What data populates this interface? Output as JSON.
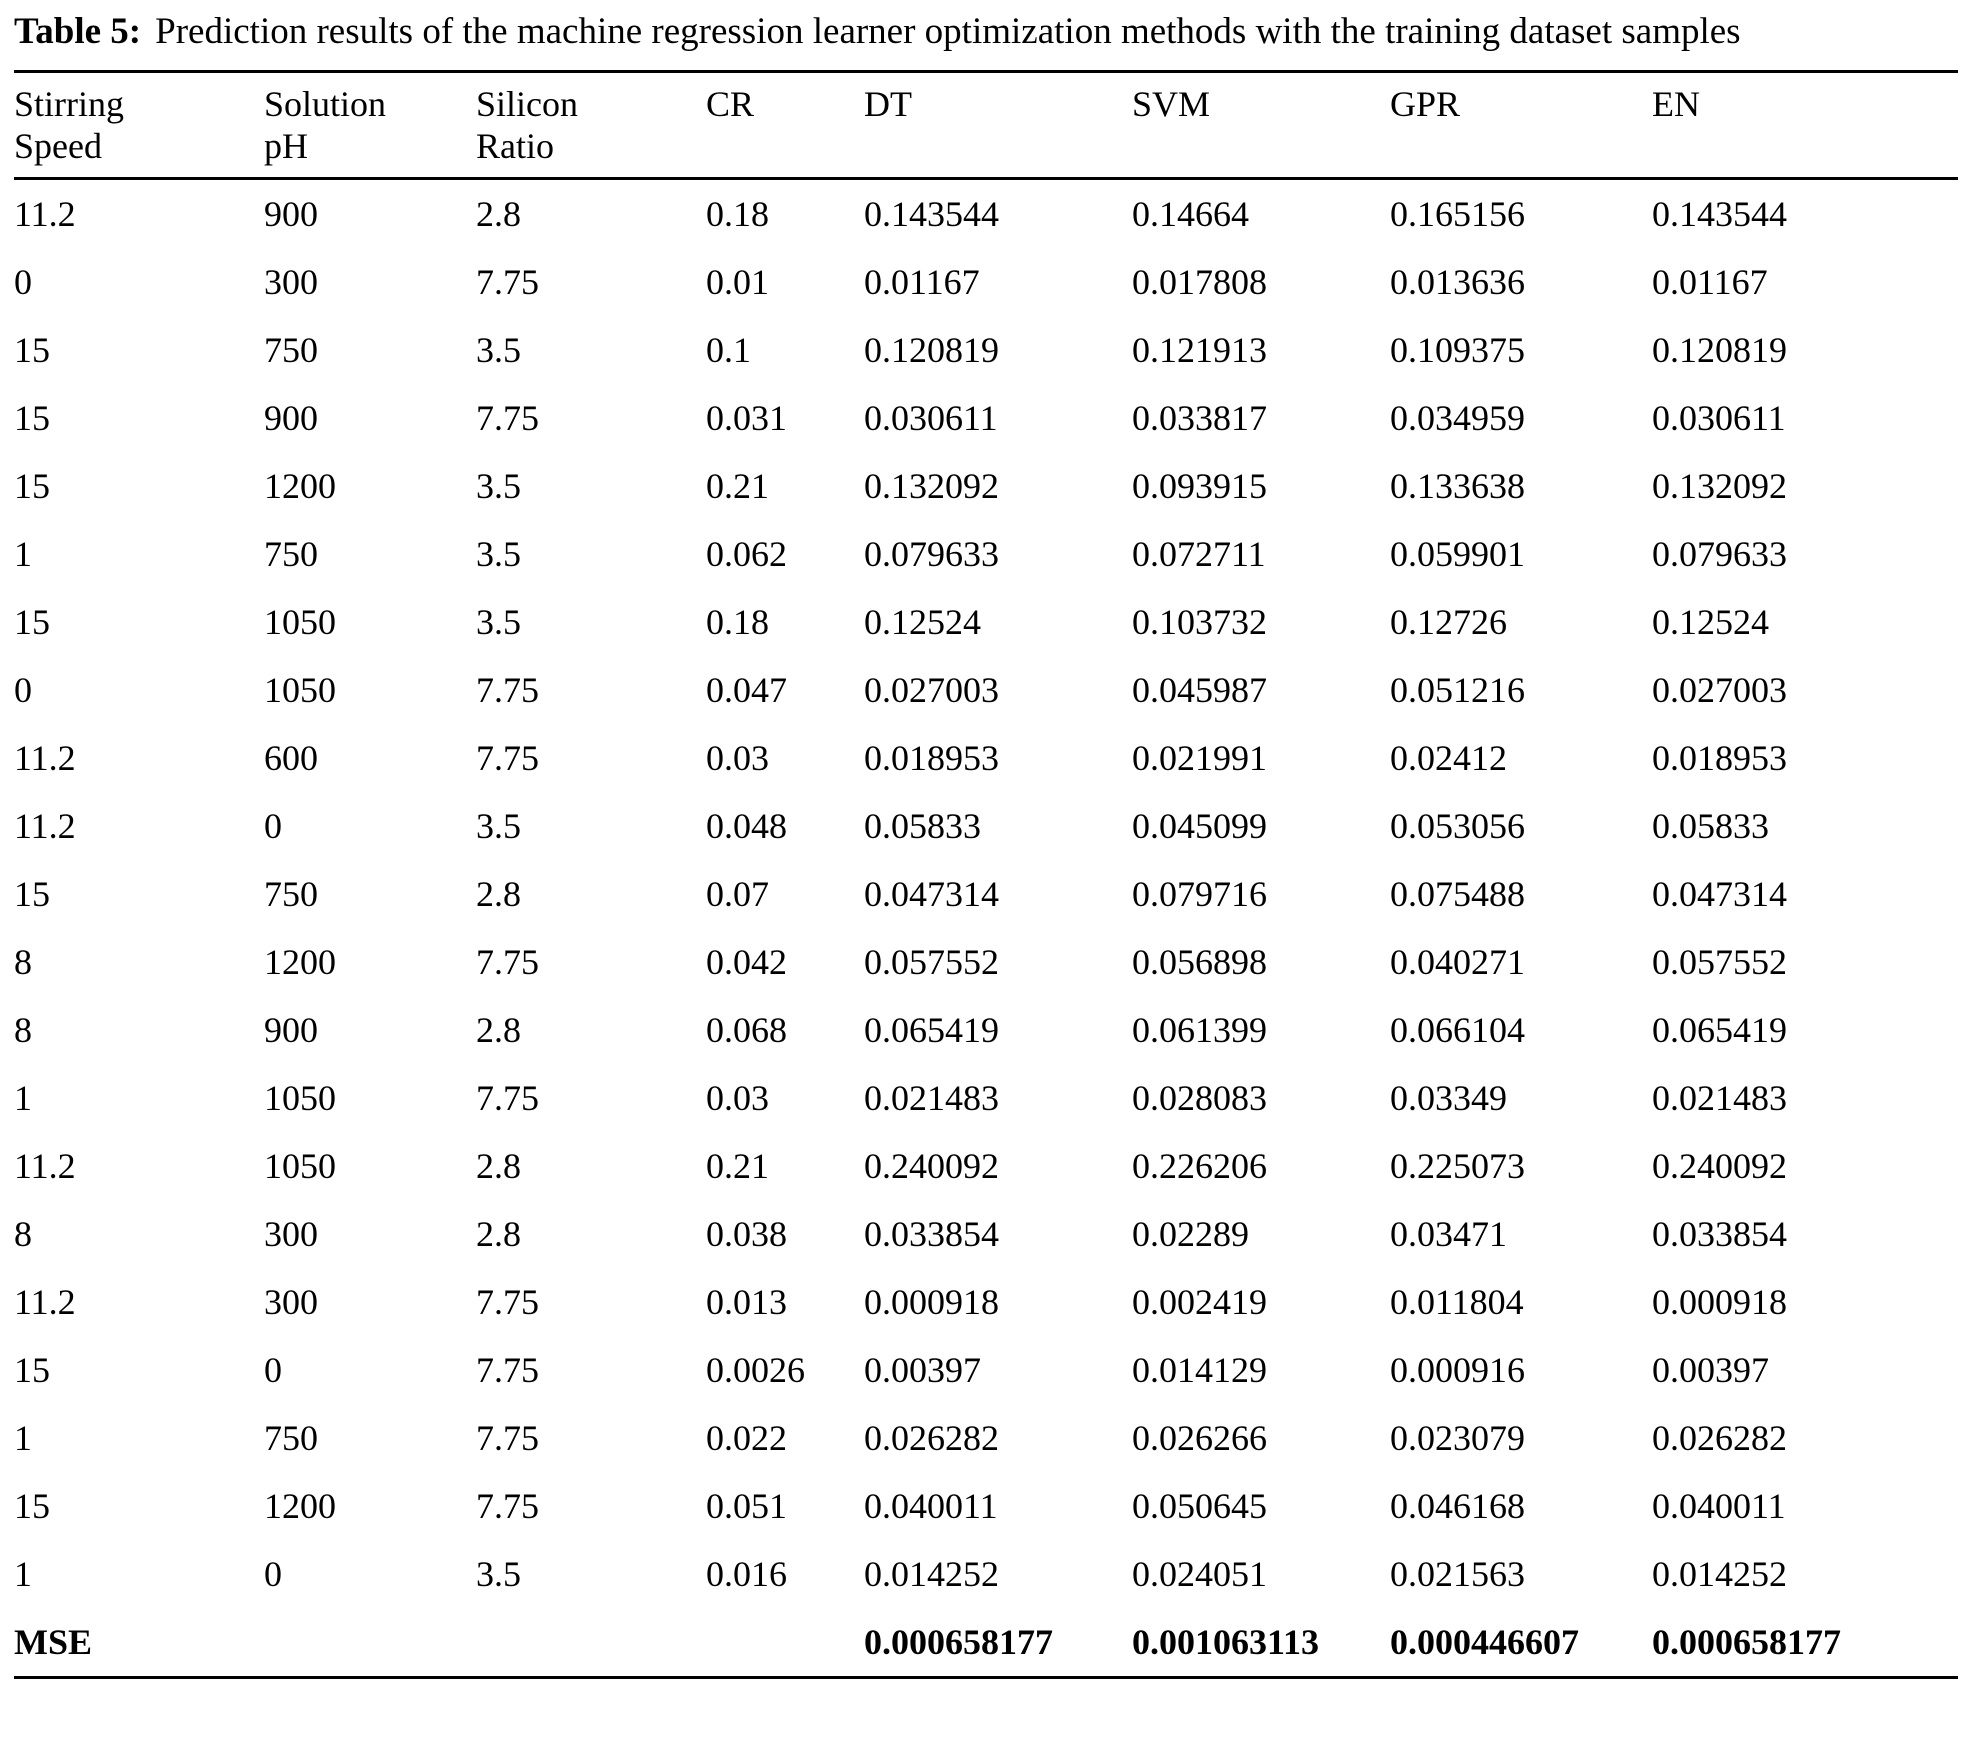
{
  "caption": {
    "label": "Table 5:",
    "text": "Prediction results of the machine regression learner optimization methods with the training dataset samples"
  },
  "table": {
    "headers": [
      "Stirring\nSpeed",
      "Solution\npH",
      "Silicon\nRatio",
      "CR",
      "DT",
      "SVM",
      "GPR",
      "EN"
    ],
    "rows": [
      [
        "11.2",
        "900",
        "2.8",
        "0.18",
        "0.143544",
        "0.14664",
        "0.165156",
        "0.143544"
      ],
      [
        "0",
        "300",
        "7.75",
        "0.01",
        "0.01167",
        "0.017808",
        "0.013636",
        "0.01167"
      ],
      [
        "15",
        "750",
        "3.5",
        "0.1",
        "0.120819",
        "0.121913",
        "0.109375",
        "0.120819"
      ],
      [
        "15",
        "900",
        "7.75",
        "0.031",
        "0.030611",
        "0.033817",
        "0.034959",
        "0.030611"
      ],
      [
        "15",
        "1200",
        "3.5",
        "0.21",
        "0.132092",
        "0.093915",
        "0.133638",
        "0.132092"
      ],
      [
        "1",
        "750",
        "3.5",
        "0.062",
        "0.079633",
        "0.072711",
        "0.059901",
        "0.079633"
      ],
      [
        "15",
        "1050",
        "3.5",
        "0.18",
        "0.12524",
        "0.103732",
        "0.12726",
        "0.12524"
      ],
      [
        "0",
        "1050",
        "7.75",
        "0.047",
        "0.027003",
        "0.045987",
        "0.051216",
        "0.027003"
      ],
      [
        "11.2",
        "600",
        "7.75",
        "0.03",
        "0.018953",
        "0.021991",
        "0.02412",
        "0.018953"
      ],
      [
        "11.2",
        "0",
        "3.5",
        "0.048",
        "0.05833",
        "0.045099",
        "0.053056",
        "0.05833"
      ],
      [
        "15",
        "750",
        "2.8",
        "0.07",
        "0.047314",
        "0.079716",
        "0.075488",
        "0.047314"
      ],
      [
        "8",
        "1200",
        "7.75",
        "0.042",
        "0.057552",
        "0.056898",
        "0.040271",
        "0.057552"
      ],
      [
        "8",
        "900",
        "2.8",
        "0.068",
        "0.065419",
        "0.061399",
        "0.066104",
        "0.065419"
      ],
      [
        "1",
        "1050",
        "7.75",
        "0.03",
        "0.021483",
        "0.028083",
        "0.03349",
        "0.021483"
      ],
      [
        "11.2",
        "1050",
        "2.8",
        "0.21",
        "0.240092",
        "0.226206",
        "0.225073",
        "0.240092"
      ],
      [
        "8",
        "300",
        "2.8",
        "0.038",
        "0.033854",
        "0.02289",
        "0.03471",
        "0.033854"
      ],
      [
        "11.2",
        "300",
        "7.75",
        "0.013",
        "0.000918",
        "0.002419",
        "0.011804",
        "0.000918"
      ],
      [
        "15",
        "0",
        "7.75",
        "0.0026",
        "0.00397",
        "0.014129",
        "0.000916",
        "0.00397"
      ],
      [
        "1",
        "750",
        "7.75",
        "0.022",
        "0.026282",
        "0.026266",
        "0.023079",
        "0.026282"
      ],
      [
        "15",
        "1200",
        "7.75",
        "0.051",
        "0.040011",
        "0.050645",
        "0.046168",
        "0.040011"
      ],
      [
        "1",
        "0",
        "3.5",
        "0.016",
        "0.014252",
        "0.024051",
        "0.021563",
        "0.014252"
      ]
    ],
    "mse": {
      "label": "MSE",
      "values": [
        "0.000658177",
        "0.001063113",
        "0.000446607",
        "0.000658177"
      ]
    }
  }
}
